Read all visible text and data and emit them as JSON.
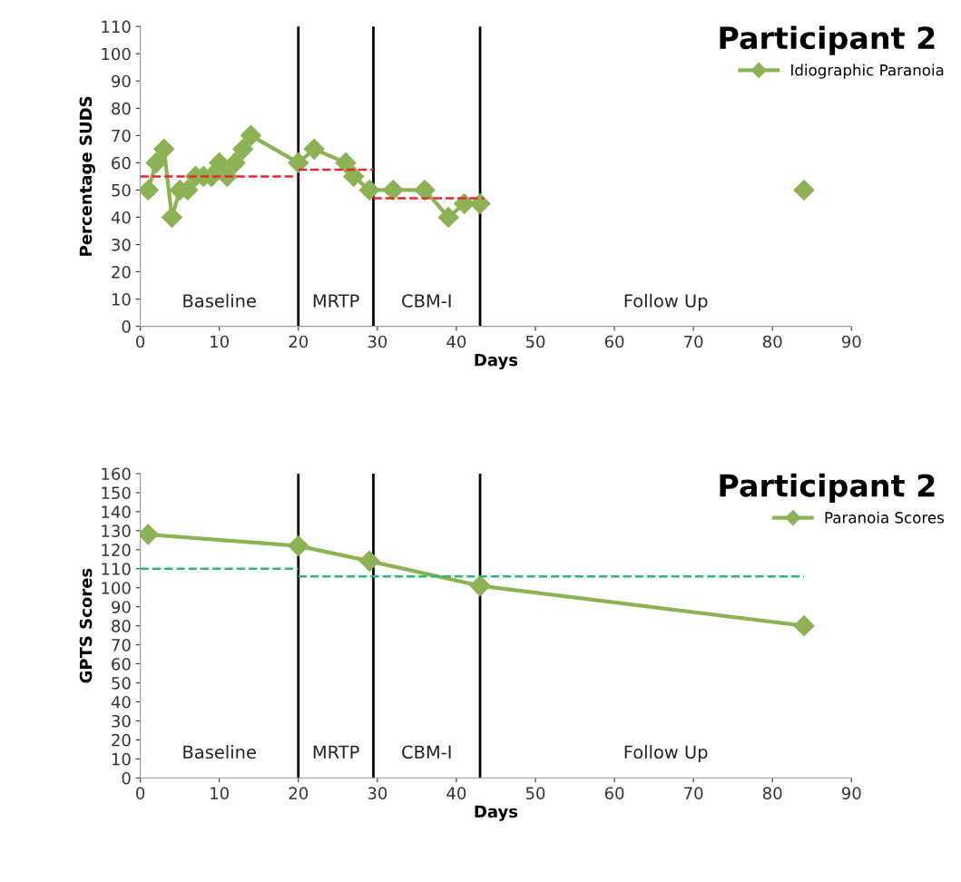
{
  "chart_data": [
    {
      "type": "line",
      "title": "Participant 2",
      "xlabel": "Days",
      "ylabel": "Percentage SUDS",
      "xlim": [
        0,
        90
      ],
      "xticks": [
        0,
        10,
        20,
        30,
        40,
        50,
        60,
        70,
        80,
        90
      ],
      "ylim": [
        0,
        110
      ],
      "yticks": [
        0,
        10,
        20,
        30,
        40,
        50,
        60,
        70,
        80,
        90,
        100,
        110
      ],
      "grid": false,
      "legend": "top right",
      "marker": "diamond",
      "series": [
        {
          "name": "Idiographic Paranoia",
          "color": "#8db255",
          "x": [
            1,
            2,
            3,
            4,
            5,
            6,
            7,
            8,
            9,
            10,
            11,
            12,
            13,
            14,
            20,
            22,
            26,
            27,
            29,
            32,
            36,
            39,
            41,
            43
          ],
          "values": [
            50,
            60,
            65,
            40,
            50,
            50,
            55,
            55,
            55,
            60,
            55,
            60,
            65,
            70,
            60,
            65,
            60,
            55,
            50,
            50,
            50,
            40,
            45,
            45
          ]
        },
        {
          "type": "scatter",
          "color": "#8db255",
          "x": [
            84
          ],
          "values": [
            50
          ]
        },
        {
          "type": "line",
          "color": "#e8262b",
          "line_style": "dashed",
          "marker": "none",
          "x": [
            0,
            20
          ],
          "values": [
            55,
            55
          ]
        },
        {
          "type": "line",
          "color": "#e8262b",
          "line_style": "dashed",
          "marker": "none",
          "x": [
            20,
            29.5
          ],
          "values": [
            57.5,
            57.5
          ]
        },
        {
          "type": "line",
          "color": "#e8262b",
          "line_style": "dashed",
          "marker": "none",
          "x": [
            29.5,
            43.5
          ],
          "values": [
            47,
            47
          ]
        }
      ],
      "ref_lines": [
        {
          "axis": "x",
          "value": 20,
          "color": "#000000"
        },
        {
          "axis": "x",
          "value": 29.5,
          "color": "#000000"
        },
        {
          "axis": "x",
          "value": 43,
          "color": "#000000"
        }
      ],
      "annotations": [
        "Baseline",
        "MRTP",
        "CBM-I",
        "Follow Up"
      ]
    },
    {
      "type": "line",
      "title": "Participant 2",
      "xlabel": "Days",
      "ylabel": "GPTS Scores",
      "xlim": [
        0,
        90
      ],
      "xticks": [
        0,
        10,
        20,
        30,
        40,
        50,
        60,
        70,
        80,
        90
      ],
      "ylim": [
        0,
        160
      ],
      "yticks": [
        0,
        10,
        20,
        30,
        40,
        50,
        60,
        70,
        80,
        90,
        100,
        110,
        120,
        130,
        140,
        150,
        160
      ],
      "grid": false,
      "legend": "top right",
      "marker": "diamond",
      "series": [
        {
          "name": "Paranoia Scores",
          "color": "#8db255",
          "x": [
            1,
            20,
            29,
            43,
            84
          ],
          "values": [
            128,
            122,
            114,
            101,
            80
          ]
        },
        {
          "type": "line",
          "color": "#2eb872",
          "line_style": "dashed",
          "marker": "none",
          "x": [
            0,
            20
          ],
          "values": [
            110,
            110
          ]
        },
        {
          "type": "line",
          "color": "#2eb872",
          "line_style": "dashed",
          "marker": "none",
          "x": [
            20,
            84
          ],
          "values": [
            106,
            106
          ]
        }
      ],
      "ref_lines": [
        {
          "axis": "x",
          "value": 20,
          "color": "#000000"
        },
        {
          "axis": "x",
          "value": 29.5,
          "color": "#000000"
        },
        {
          "axis": "x",
          "value": 43,
          "color": "#000000"
        }
      ],
      "annotations": [
        "Baseline",
        "MRTP",
        "CBM-I",
        "Follow Up"
      ]
    }
  ]
}
